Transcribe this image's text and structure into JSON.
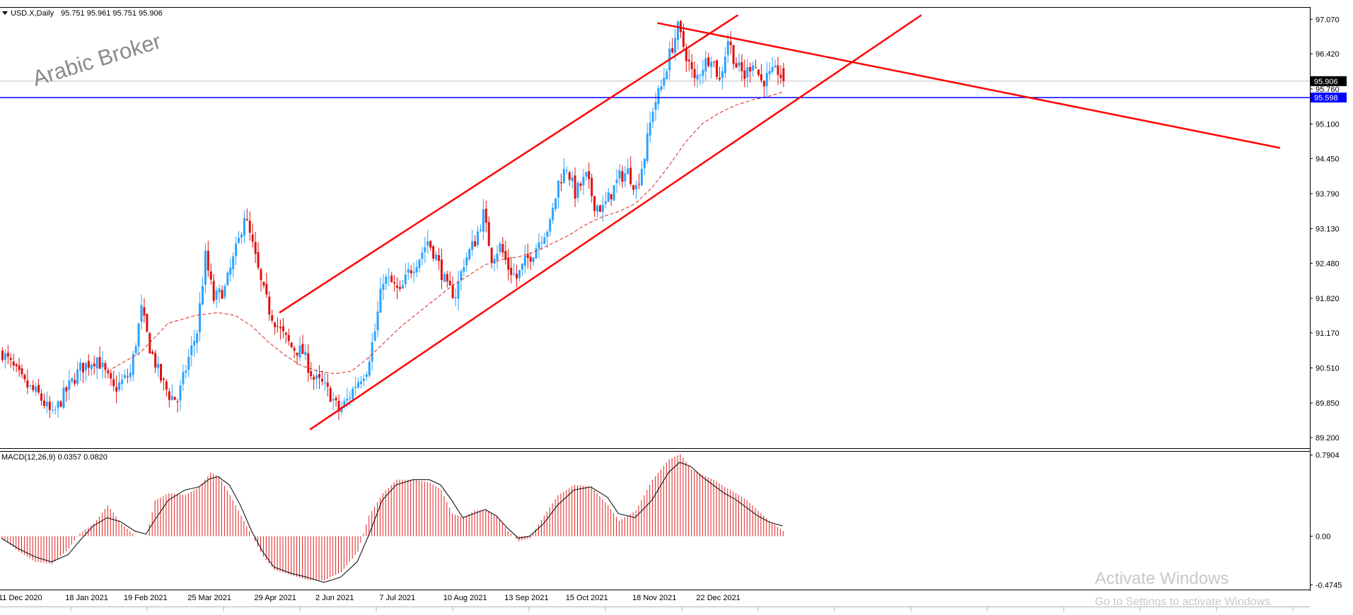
{
  "header": {
    "symbol_title": "USD.X,Daily",
    "ohlc": "95.751 95.961 95.751 95.906"
  },
  "watermark": "Arabic Broker",
  "os_overlay": {
    "line1": "Activate Windows",
    "line2": "Go to Settings to activate Windows."
  },
  "colors": {
    "bull": "#2ba2ff",
    "bear": "#e01010",
    "trendline": "#ff0000",
    "hline": "#0000ff",
    "ma": "#e02020",
    "macd_hist": "#e21e1e",
    "macd_signal": "#000000",
    "price_tag_bg": "#000000",
    "hline_tag_bg": "#0000ff"
  },
  "chart_data": [
    {
      "type": "candlestick",
      "symbol": "USD.X",
      "timeframe": "Daily",
      "ylim": [
        89.0,
        97.3
      ],
      "y_ticks": [
        "97.070",
        "96.420",
        "95.760",
        "95.100",
        "94.450",
        "93.790",
        "93.130",
        "92.480",
        "91.820",
        "91.170",
        "90.510",
        "89.850",
        "89.200"
      ],
      "last_price": 95.906,
      "last_price_label": "95.906",
      "horizontal_line": 95.598,
      "horizontal_line_label": "95.598",
      "x_tick_labels": [
        "11 Dec 2020",
        "18 Jan 2021",
        "19 Feb 2021",
        "25 Mar 2021",
        "29 Apr 2021",
        "2 Jun 2021",
        "7 Jul 2021",
        "10 Aug 2021",
        "13 Sep 2021",
        "15 Oct 2021",
        "18 Nov 2021",
        "22 Dec 2021"
      ],
      "close_path": [
        [
          0,
          90.8
        ],
        [
          8,
          90.2
        ],
        [
          13,
          90.0
        ],
        [
          18,
          89.6
        ],
        [
          22,
          90.0
        ],
        [
          28,
          90.5
        ],
        [
          34,
          90.7
        ],
        [
          40,
          90.1
        ],
        [
          46,
          90.4
        ],
        [
          50,
          91.6
        ],
        [
          53,
          90.9
        ],
        [
          57,
          90.3
        ],
        [
          60,
          90.0
        ],
        [
          63,
          89.9
        ],
        [
          67,
          90.7
        ],
        [
          70,
          91.2
        ],
        [
          73,
          92.6
        ],
        [
          76,
          91.8
        ],
        [
          80,
          92.0
        ],
        [
          85,
          92.9
        ],
        [
          87,
          93.4
        ],
        [
          90,
          92.8
        ],
        [
          93,
          92.1
        ],
        [
          96,
          91.6
        ],
        [
          100,
          91.2
        ],
        [
          104,
          90.9
        ],
        [
          108,
          90.8
        ],
        [
          112,
          90.3
        ],
        [
          115,
          90.2
        ],
        [
          118,
          90.0
        ],
        [
          121,
          89.7
        ],
        [
          124,
          89.9
        ],
        [
          127,
          90.2
        ],
        [
          131,
          90.5
        ],
        [
          134,
          91.2
        ],
        [
          137,
          92.2
        ],
        [
          140,
          92.1
        ],
        [
          143,
          91.9
        ],
        [
          146,
          92.3
        ],
        [
          150,
          92.6
        ],
        [
          153,
          92.9
        ],
        [
          156,
          92.6
        ],
        [
          160,
          92.0
        ],
        [
          163,
          91.9
        ],
        [
          166,
          92.5
        ],
        [
          170,
          92.9
        ],
        [
          173,
          93.4
        ],
        [
          176,
          92.6
        ],
        [
          179,
          92.8
        ],
        [
          182,
          92.4
        ],
        [
          185,
          92.2
        ],
        [
          188,
          92.5
        ],
        [
          191,
          92.7
        ],
        [
          194,
          93.0
        ],
        [
          197,
          93.2
        ],
        [
          200,
          94.0
        ],
        [
          203,
          94.3
        ],
        [
          206,
          93.8
        ],
        [
          210,
          94.1
        ],
        [
          213,
          93.6
        ],
        [
          216,
          93.5
        ],
        [
          219,
          93.8
        ],
        [
          222,
          94.1
        ],
        [
          225,
          94.2
        ],
        [
          228,
          93.9
        ],
        [
          231,
          94.5
        ],
        [
          234,
          95.4
        ],
        [
          237,
          95.8
        ],
        [
          240,
          96.4
        ],
        [
          243,
          96.9
        ],
        [
          246,
          96.4
        ],
        [
          249,
          95.9
        ],
        [
          252,
          96.2
        ],
        [
          255,
          96.4
        ],
        [
          258,
          95.9
        ],
        [
          261,
          96.7
        ],
        [
          264,
          96.2
        ],
        [
          267,
          96.0
        ],
        [
          270,
          96.3
        ],
        [
          273,
          95.9
        ],
        [
          276,
          96.0
        ],
        [
          279,
          96.1
        ],
        [
          281,
          95.9
        ]
      ],
      "moving_average": [
        [
          40,
          90.5
        ],
        [
          50,
          90.8
        ],
        [
          60,
          91.35
        ],
        [
          70,
          91.5
        ],
        [
          78,
          91.55
        ],
        [
          84,
          91.5
        ],
        [
          90,
          91.3
        ],
        [
          96,
          91.0
        ],
        [
          102,
          90.75
        ],
        [
          108,
          90.55
        ],
        [
          114,
          90.45
        ],
        [
          120,
          90.4
        ],
        [
          126,
          90.45
        ],
        [
          132,
          90.7
        ],
        [
          138,
          91.0
        ],
        [
          144,
          91.3
        ],
        [
          150,
          91.55
        ],
        [
          156,
          91.8
        ],
        [
          162,
          92.05
        ],
        [
          168,
          92.25
        ],
        [
          174,
          92.45
        ],
        [
          180,
          92.55
        ],
        [
          186,
          92.6
        ],
        [
          192,
          92.7
        ],
        [
          198,
          92.85
        ],
        [
          204,
          93.0
        ],
        [
          210,
          93.2
        ],
        [
          216,
          93.35
        ],
        [
          222,
          93.45
        ],
        [
          228,
          93.6
        ],
        [
          234,
          93.9
        ],
        [
          240,
          94.3
        ],
        [
          246,
          94.75
        ],
        [
          252,
          95.1
        ],
        [
          258,
          95.3
        ],
        [
          264,
          95.45
        ],
        [
          270,
          95.55
        ],
        [
          276,
          95.62
        ],
        [
          281,
          95.7
        ]
      ],
      "trendlines": [
        {
          "name": "channel-lower",
          "from": [
            111,
            89.35
          ],
          "to": [
            331,
            97.15
          ]
        },
        {
          "name": "channel-upper",
          "from": [
            100,
            91.55
          ],
          "to": [
            265,
            97.15
          ]
        },
        {
          "name": "descending-resistance",
          "from": [
            236,
            97.0
          ],
          "to": [
            460,
            94.65
          ]
        }
      ]
    },
    {
      "type": "bar",
      "title": "MACD(12,26,9) 0.0357 0.0820",
      "ylim": [
        -0.52,
        0.83
      ],
      "y_ticks": [
        "0.7904",
        "0.00",
        "-0.4745"
      ],
      "macd_path": [
        [
          0,
          -0.02
        ],
        [
          6,
          -0.15
        ],
        [
          12,
          -0.25
        ],
        [
          18,
          -0.27
        ],
        [
          24,
          -0.12
        ],
        [
          28,
          0.03
        ],
        [
          33,
          0.12
        ],
        [
          38,
          0.3
        ],
        [
          43,
          0.12
        ],
        [
          48,
          0.0
        ],
        [
          52,
          0.0
        ],
        [
          55,
          0.35
        ],
        [
          60,
          0.42
        ],
        [
          66,
          0.4
        ],
        [
          71,
          0.48
        ],
        [
          75,
          0.62
        ],
        [
          78,
          0.58
        ],
        [
          82,
          0.4
        ],
        [
          86,
          0.2
        ],
        [
          90,
          0.0
        ],
        [
          94,
          -0.2
        ],
        [
          98,
          -0.33
        ],
        [
          104,
          -0.38
        ],
        [
          110,
          -0.43
        ],
        [
          116,
          -0.43
        ],
        [
          122,
          -0.35
        ],
        [
          128,
          -0.15
        ],
        [
          132,
          0.2
        ],
        [
          137,
          0.42
        ],
        [
          142,
          0.55
        ],
        [
          148,
          0.55
        ],
        [
          154,
          0.52
        ],
        [
          158,
          0.45
        ],
        [
          162,
          0.22
        ],
        [
          166,
          0.18
        ],
        [
          170,
          0.25
        ],
        [
          174,
          0.25
        ],
        [
          178,
          0.2
        ],
        [
          182,
          0.05
        ],
        [
          186,
          -0.05
        ],
        [
          190,
          -0.02
        ],
        [
          195,
          0.2
        ],
        [
          200,
          0.4
        ],
        [
          206,
          0.5
        ],
        [
          212,
          0.48
        ],
        [
          218,
          0.3
        ],
        [
          222,
          0.15
        ],
        [
          228,
          0.25
        ],
        [
          234,
          0.55
        ],
        [
          240,
          0.75
        ],
        [
          244,
          0.8
        ],
        [
          248,
          0.65
        ],
        [
          252,
          0.6
        ],
        [
          256,
          0.55
        ],
        [
          260,
          0.48
        ],
        [
          264,
          0.42
        ],
        [
          268,
          0.35
        ],
        [
          272,
          0.25
        ],
        [
          276,
          0.15
        ],
        [
          281,
          0.05
        ]
      ],
      "signal_path": [
        [
          0,
          -0.02
        ],
        [
          6,
          -0.12
        ],
        [
          12,
          -0.2
        ],
        [
          18,
          -0.25
        ],
        [
          24,
          -0.18
        ],
        [
          28,
          -0.05
        ],
        [
          33,
          0.1
        ],
        [
          38,
          0.18
        ],
        [
          43,
          0.14
        ],
        [
          48,
          0.05
        ],
        [
          52,
          0.02
        ],
        [
          55,
          0.15
        ],
        [
          60,
          0.35
        ],
        [
          66,
          0.45
        ],
        [
          71,
          0.48
        ],
        [
          75,
          0.56
        ],
        [
          78,
          0.58
        ],
        [
          82,
          0.5
        ],
        [
          86,
          0.3
        ],
        [
          90,
          0.05
        ],
        [
          94,
          -0.15
        ],
        [
          98,
          -0.3
        ],
        [
          104,
          -0.36
        ],
        [
          110,
          -0.4
        ],
        [
          116,
          -0.45
        ],
        [
          122,
          -0.4
        ],
        [
          128,
          -0.25
        ],
        [
          132,
          0.0
        ],
        [
          137,
          0.35
        ],
        [
          142,
          0.5
        ],
        [
          148,
          0.55
        ],
        [
          154,
          0.55
        ],
        [
          158,
          0.5
        ],
        [
          162,
          0.35
        ],
        [
          166,
          0.18
        ],
        [
          170,
          0.22
        ],
        [
          174,
          0.26
        ],
        [
          178,
          0.2
        ],
        [
          182,
          0.08
        ],
        [
          186,
          -0.02
        ],
        [
          190,
          0.0
        ],
        [
          195,
          0.12
        ],
        [
          200,
          0.3
        ],
        [
          206,
          0.45
        ],
        [
          212,
          0.48
        ],
        [
          218,
          0.38
        ],
        [
          222,
          0.22
        ],
        [
          228,
          0.18
        ],
        [
          234,
          0.35
        ],
        [
          240,
          0.62
        ],
        [
          244,
          0.72
        ],
        [
          248,
          0.68
        ],
        [
          252,
          0.58
        ],
        [
          256,
          0.5
        ],
        [
          260,
          0.42
        ],
        [
          264,
          0.36
        ],
        [
          268,
          0.28
        ],
        [
          272,
          0.2
        ],
        [
          276,
          0.14
        ],
        [
          281,
          0.1
        ]
      ]
    }
  ]
}
